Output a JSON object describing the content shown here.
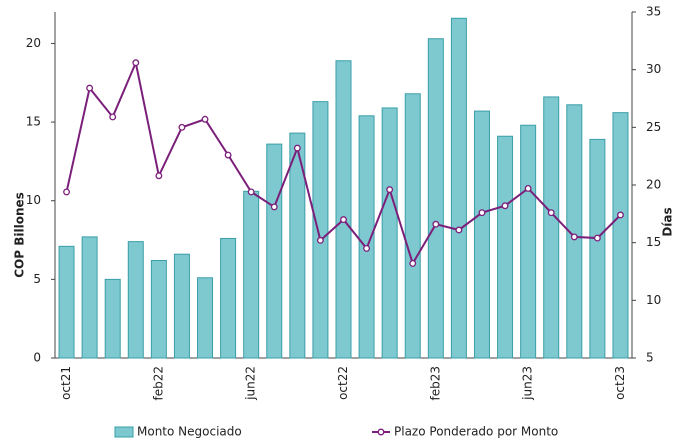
{
  "chart_data": {
    "type": "bar-line",
    "y_label": "COP Billones",
    "y2_label": "Días",
    "categories": [
      "oct21",
      null,
      null,
      null,
      "feb22",
      null,
      null,
      null,
      "jun22",
      null,
      null,
      null,
      "oct22",
      null,
      null,
      null,
      "feb23",
      null,
      null,
      null,
      "jun23",
      null,
      null,
      null,
      "oct23"
    ],
    "series": [
      {
        "name": "Monto Negociado",
        "kind": "bar",
        "color": "#7ec8d0",
        "values": [
          7.1,
          7.7,
          5.0,
          7.4,
          6.2,
          6.6,
          5.1,
          7.6,
          10.6,
          13.6,
          14.3,
          16.3,
          18.9,
          15.4,
          15.9,
          16.8,
          20.3,
          21.6,
          15.7,
          14.1,
          14.8,
          16.6,
          16.1,
          13.9,
          15.6
        ]
      },
      {
        "name": "Plazo Ponderado por Monto",
        "kind": "line",
        "axis": "y2",
        "color": "#7b1f7a",
        "values": [
          19.4,
          28.4,
          25.9,
          30.6,
          20.8,
          25.0,
          25.7,
          22.6,
          19.4,
          18.1,
          23.2,
          15.2,
          17.0,
          14.5,
          19.6,
          13.2,
          16.6,
          16.1,
          17.6,
          18.2,
          19.7,
          17.6,
          15.5,
          15.4,
          17.4
        ]
      }
    ],
    "ylim": [
      0,
      22
    ],
    "yticks": [
      0,
      5,
      10,
      15,
      20
    ],
    "y2lim": [
      5,
      35
    ],
    "y2ticks": [
      5,
      10,
      15,
      20,
      25,
      30,
      35
    ]
  }
}
